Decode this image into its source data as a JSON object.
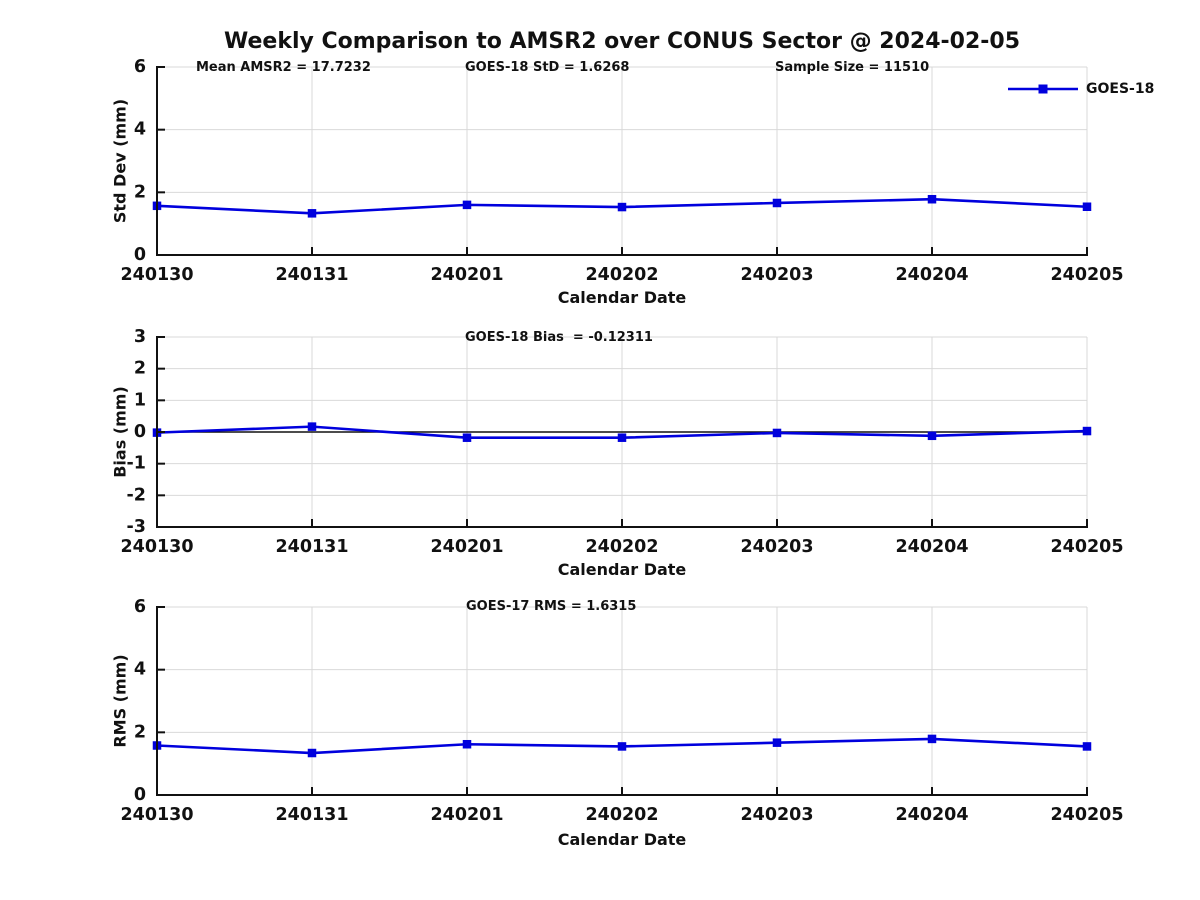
{
  "title": "Weekly Comparison to AMSR2 over CONUS Sector @ 2024-02-05",
  "legend": {
    "label": "GOES-18"
  },
  "colors": {
    "series": "#0000dd",
    "grid": "#d9d9d9",
    "axis": "#111111",
    "zero_line": "#111111"
  },
  "chart_data": [
    {
      "type": "line",
      "categories": [
        "240130",
        "240131",
        "240201",
        "240202",
        "240203",
        "240204",
        "240205"
      ],
      "series": [
        {
          "name": "GOES-18",
          "values": [
            1.57,
            1.33,
            1.6,
            1.53,
            1.66,
            1.78,
            1.54
          ]
        }
      ],
      "annotations": [
        "Mean AMSR2 = 17.7232",
        "GOES-18 StD = 1.6268",
        "Sample Size = 11510"
      ],
      "xlabel": "Calendar Date",
      "ylabel": "Std Dev (mm)",
      "ylim": [
        0,
        6
      ],
      "yticks": [
        0,
        2,
        4,
        6
      ],
      "grid": true,
      "legend_position": "top-right",
      "zero_line": false
    },
    {
      "type": "line",
      "categories": [
        "240130",
        "240131",
        "240201",
        "240202",
        "240203",
        "240204",
        "240205"
      ],
      "series": [
        {
          "name": "GOES-18",
          "values": [
            -0.02,
            0.17,
            -0.18,
            -0.18,
            -0.03,
            -0.12,
            0.03
          ]
        }
      ],
      "annotations": [
        "GOES-18 Bias  = -0.12311"
      ],
      "xlabel": "Calendar Date",
      "ylabel": "Bias (mm)",
      "ylim": [
        -3,
        3
      ],
      "yticks": [
        -3,
        -2,
        -1,
        0,
        1,
        2,
        3
      ],
      "grid": true,
      "legend_position": "none",
      "zero_line": true
    },
    {
      "type": "line",
      "categories": [
        "240130",
        "240131",
        "240201",
        "240202",
        "240203",
        "240204",
        "240205"
      ],
      "series": [
        {
          "name": "GOES-18",
          "values": [
            1.58,
            1.34,
            1.62,
            1.55,
            1.67,
            1.79,
            1.55
          ]
        }
      ],
      "annotations": [
        "GOES-17 RMS = 1.6315"
      ],
      "xlabel": "Calendar Date",
      "ylabel": "RMS (mm)",
      "ylim": [
        0,
        6
      ],
      "yticks": [
        0,
        2,
        4,
        6
      ],
      "grid": true,
      "legend_position": "none",
      "zero_line": false
    }
  ]
}
